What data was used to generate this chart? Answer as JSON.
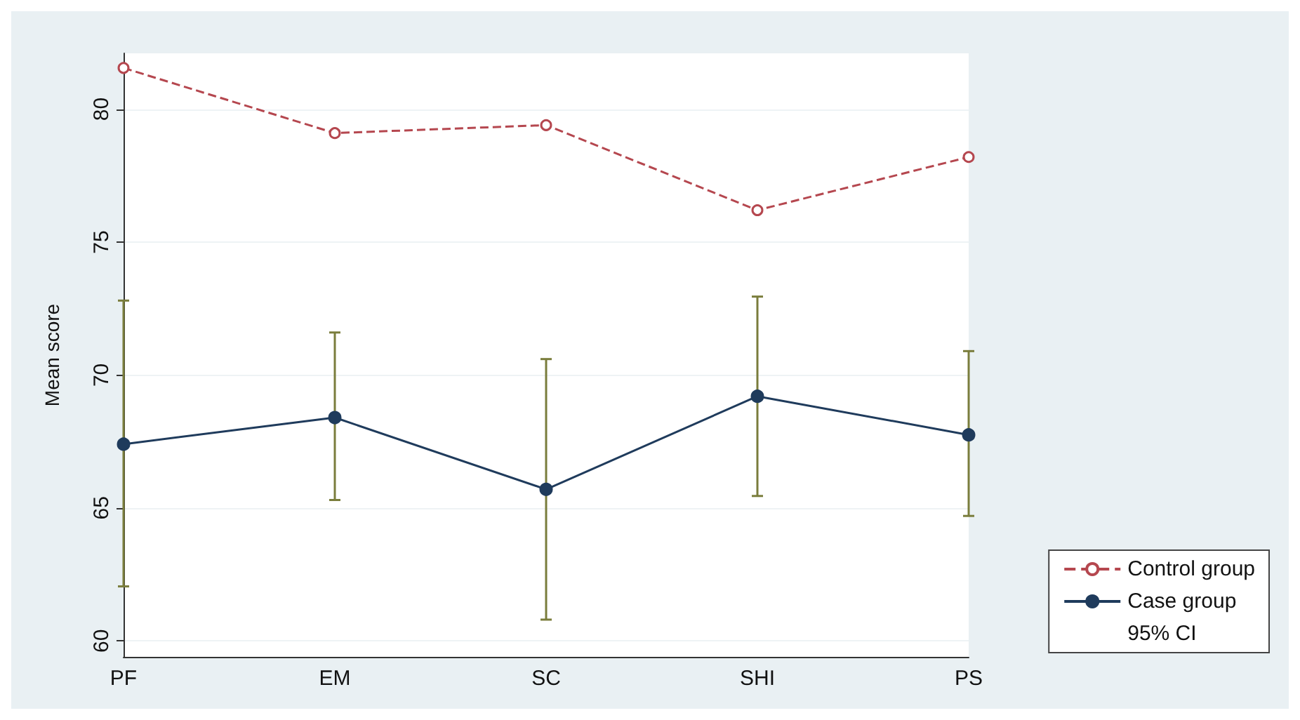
{
  "chart_data": {
    "type": "line",
    "ylabel": "Mean score",
    "categories": [
      "PF",
      "EM",
      "SC",
      "SHI",
      "PS"
    ],
    "series": [
      {
        "name": "Control group",
        "color": "#b5474f",
        "line_style": "dashed",
        "values": [
          81.55,
          79.1,
          79.4,
          76.2,
          78.2
        ]
      },
      {
        "name": "Case group",
        "color": "#1f3b5c",
        "line_style": "solid",
        "values": [
          67.4,
          68.4,
          65.7,
          69.2,
          67.75
        ],
        "errors": [
          [
            62.05,
            72.8
          ],
          [
            65.3,
            71.6
          ],
          [
            60.8,
            70.6
          ],
          [
            65.45,
            72.95
          ],
          [
            64.7,
            70.9
          ]
        ]
      }
    ],
    "annotations": [
      "95% CI"
    ],
    "ylim": [
      59.4,
      82.1
    ],
    "yticks": [
      60,
      65,
      70,
      75,
      80
    ],
    "grid": "y",
    "legend": "bottom right",
    "marker": "circle"
  }
}
